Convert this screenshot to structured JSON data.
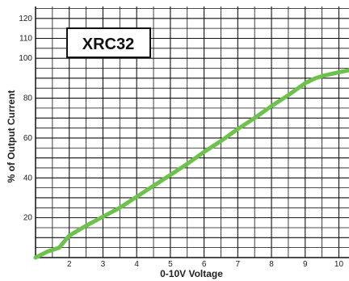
{
  "chart_data": {
    "type": "line",
    "title": "XRC32",
    "xlabel": "0-10V Voltage",
    "ylabel": "% of Output Current",
    "xlim": [
      1,
      10.3
    ],
    "ylim": [
      0,
      126
    ],
    "x_ticks": [
      2,
      3,
      4,
      5,
      6,
      7,
      8,
      9,
      10
    ],
    "y_ticks": [
      20,
      40,
      60,
      80,
      100,
      110,
      120
    ],
    "grid": true,
    "series": [
      {
        "color": "#6cc24a",
        "x": [
          1.0,
          1.35,
          1.7,
          1.85,
          2.0,
          2.5,
          3.0,
          3.5,
          4.0,
          4.5,
          5.0,
          5.5,
          6.0,
          6.5,
          7.0,
          7.5,
          8.0,
          8.5,
          9.0,
          9.3,
          9.6,
          10.0,
          10.3
        ],
        "y": [
          0,
          3,
          5,
          8,
          11,
          16,
          20.5,
          25,
          30.5,
          36,
          41.5,
          47,
          53,
          58.5,
          64.5,
          70,
          76,
          81.5,
          87.5,
          90,
          91.5,
          93,
          94
        ]
      }
    ]
  }
}
